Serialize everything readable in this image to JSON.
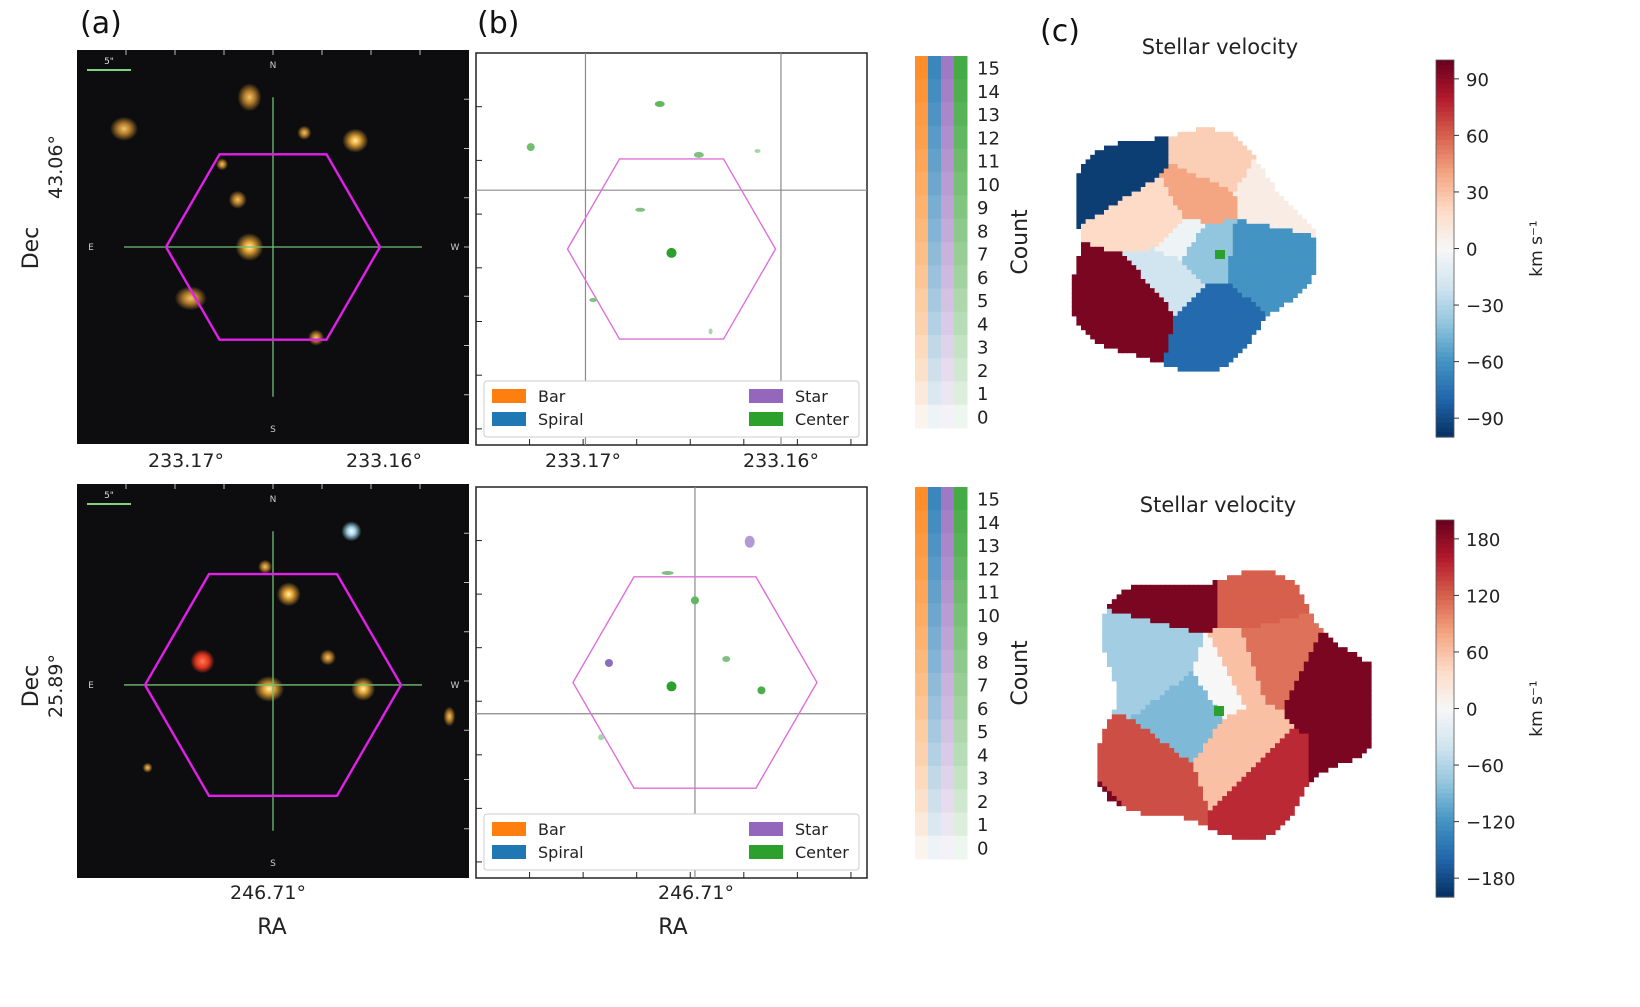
{
  "panel_labels": [
    "(a)",
    "(b)",
    "(c)"
  ],
  "compass": {
    "n": "N",
    "s": "S",
    "e": "E",
    "w": "W",
    "scale": "5\""
  },
  "chart_data": [
    {
      "type": "image",
      "panel": "a",
      "row": "top",
      "xlabel": "",
      "ylabel": "Dec",
      "xticks": [
        "233.17°",
        "233.16°"
      ],
      "yticks": [
        "43.06°"
      ],
      "hexagon_color": "#e020e8",
      "crosshair_color": "#6fbf73"
    },
    {
      "type": "image",
      "panel": "a",
      "row": "bottom",
      "xlabel": "RA",
      "ylabel": "Dec",
      "xticks": [
        "246.71°"
      ],
      "yticks": [
        "25.89°"
      ],
      "hexagon_color": "#e020e8",
      "crosshair_color": "#6fbf73"
    },
    {
      "type": "heatmap",
      "panel": "b",
      "row": "top",
      "xlabel": "",
      "xticks": [
        "233.17°",
        "233.16°"
      ],
      "legend": [
        "Bar",
        "Spiral",
        "Star",
        "Center"
      ],
      "legend_colors": [
        "#ff7f0e",
        "#1f77b4",
        "#9467bd",
        "#2ca02c"
      ],
      "legend_position": "lower",
      "colorbar": {
        "label": "Count",
        "min": 0,
        "max": 15,
        "ticks": [
          0,
          1,
          2,
          3,
          4,
          5,
          6,
          7,
          8,
          9,
          10,
          11,
          12,
          13,
          14,
          15
        ]
      }
    },
    {
      "type": "heatmap",
      "panel": "b",
      "row": "bottom",
      "xlabel": "RA",
      "xticks": [
        "246.71°"
      ],
      "legend": [
        "Bar",
        "Spiral",
        "Star",
        "Center"
      ],
      "legend_colors": [
        "#ff7f0e",
        "#1f77b4",
        "#9467bd",
        "#2ca02c"
      ],
      "legend_position": "lower",
      "colorbar": {
        "label": "Count",
        "min": 0,
        "max": 15,
        "ticks": [
          0,
          1,
          2,
          3,
          4,
          5,
          6,
          7,
          8,
          9,
          10,
          11,
          12,
          13,
          14,
          15
        ]
      }
    },
    {
      "type": "heatmap",
      "panel": "c",
      "row": "top",
      "title": "Stellar velocity",
      "colormap": "RdBu_r",
      "colorbar": {
        "unit": "km s⁻¹",
        "min": -100,
        "max": 100,
        "ticks": [
          -90,
          -60,
          -30,
          0,
          30,
          60,
          90
        ]
      }
    },
    {
      "type": "heatmap",
      "panel": "c",
      "row": "bottom",
      "title": "Stellar velocity",
      "colormap": "RdBu_r",
      "colorbar": {
        "unit": "km s⁻¹",
        "min": -200,
        "max": 200,
        "ticks": [
          -180,
          -120,
          -60,
          0,
          60,
          120,
          180
        ]
      }
    }
  ]
}
